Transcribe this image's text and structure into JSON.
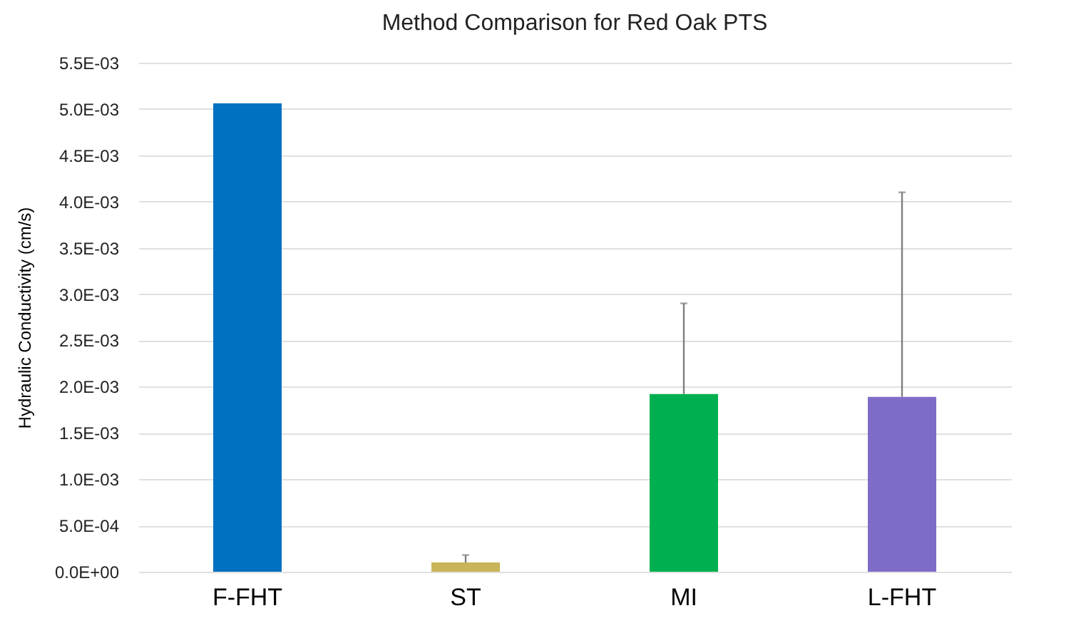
{
  "chart_data": {
    "type": "bar",
    "title": "Method Comparison for Red Oak PTS",
    "ylabel": "Hydraulic Conductivity (cm/s)",
    "categories": [
      "F-FHT",
      "ST",
      "MI",
      "L-FHT"
    ],
    "values": [
      0.00506,
      0.0001,
      0.00192,
      0.00189
    ],
    "colors": [
      "#0070c0",
      "#c9b458",
      "#00b050",
      "#7f6cc8"
    ],
    "errors": [
      null,
      [
        0.0001,
        0.00018
      ],
      [
        0.00192,
        0.0029
      ],
      [
        0.00189,
        0.0041
      ]
    ],
    "ylim": [
      0,
      0.0055
    ],
    "yticks": [
      {
        "value": 0,
        "label": "0.0E+00"
      },
      {
        "value": 0.0005,
        "label": "5.0E-04"
      },
      {
        "value": 0.001,
        "label": "1.0E-03"
      },
      {
        "value": 0.0015,
        "label": "1.5E-03"
      },
      {
        "value": 0.002,
        "label": "2.0E-03"
      },
      {
        "value": 0.0025,
        "label": "2.5E-03"
      },
      {
        "value": 0.003,
        "label": "3.0E-03"
      },
      {
        "value": 0.0035,
        "label": "3.5E-03"
      },
      {
        "value": 0.004,
        "label": "4.0E-03"
      },
      {
        "value": 0.0045,
        "label": "4.5E-03"
      },
      {
        "value": 0.005,
        "label": "5.0E-03"
      },
      {
        "value": 0.0055,
        "label": "5.5E-03"
      }
    ],
    "grid": "y"
  }
}
